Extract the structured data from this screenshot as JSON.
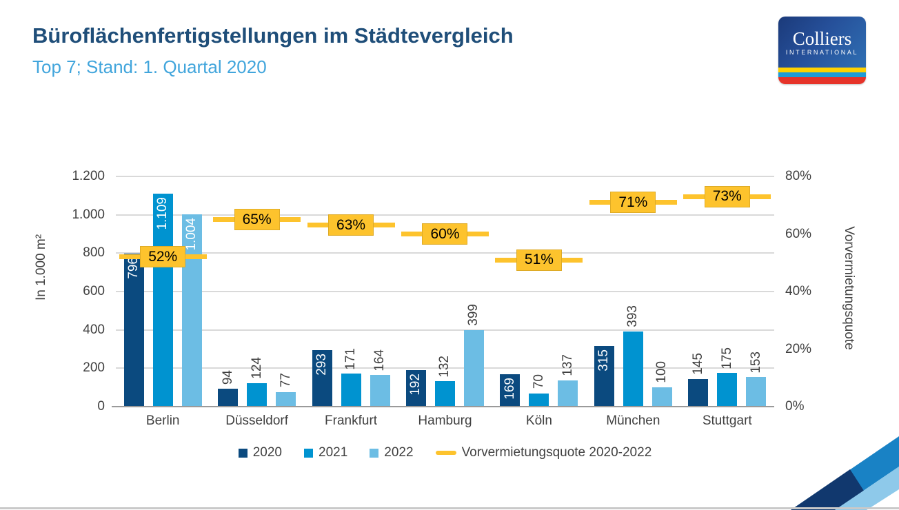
{
  "header": {
    "title": "Büroflächenfertigstellungen im Städtevergleich",
    "subtitle": "Top 7; Stand: 1. Quartal 2020"
  },
  "logo": {
    "brand": "Colliers",
    "sub": "INTERNATIONAL"
  },
  "colors": {
    "title_text": "#1f4e79",
    "subtitle_text": "#41a5dc",
    "series_2020": "#0b4a7f",
    "series_2021": "#0093d0",
    "series_2022": "#6cbde4",
    "marker_yellow": "#fdc32d",
    "axis_text": "#404040",
    "gridline": "#d9d9d9",
    "axis_line": "#9a9a9a"
  },
  "chart_data": {
    "type": "bar",
    "title": "Büroflächenfertigstellungen im Städtevergleich",
    "subtitle": "Top 7; Stand: 1. Quartal 2020",
    "categories": [
      "Berlin",
      "Düsseldorf",
      "Frankfurt",
      "Hamburg",
      "Köln",
      "München",
      "Stuttgart"
    ],
    "series": [
      {
        "name": "2020",
        "values": [
          796,
          94,
          293,
          192,
          169,
          315,
          145
        ],
        "labels": [
          "796",
          "94",
          "293",
          "192",
          "169",
          "315",
          "145"
        ],
        "label_inside": [
          true,
          false,
          true,
          true,
          true,
          true,
          false
        ]
      },
      {
        "name": "2021",
        "values": [
          1109,
          124,
          171,
          132,
          70,
          393,
          175
        ],
        "labels": [
          "1.109",
          "124",
          "171",
          "132",
          "70",
          "393",
          "175"
        ],
        "label_inside": [
          true,
          false,
          false,
          false,
          false,
          false,
          false
        ]
      },
      {
        "name": "2022",
        "values": [
          1004,
          77,
          164,
          399,
          137,
          100,
          153
        ],
        "labels": [
          "1.004",
          "77",
          "164",
          "399",
          "137",
          "100",
          "153"
        ],
        "label_inside": [
          true,
          false,
          false,
          false,
          false,
          false,
          false
        ]
      }
    ],
    "markers": {
      "name": "Vorvermietungsquote 2020-2022",
      "values": [
        52,
        65,
        63,
        60,
        51,
        71,
        73
      ],
      "labels": [
        "52%",
        "65%",
        "63%",
        "60%",
        "51%",
        "71%",
        "73%"
      ]
    },
    "y_left": {
      "label": "In 1.000 m²",
      "max": 1200,
      "tick_values": [
        0,
        200,
        400,
        600,
        800,
        1000,
        1200
      ],
      "tick_labels": [
        "0",
        "200",
        "400",
        "600",
        "800",
        "1.000",
        "1.200"
      ]
    },
    "y_right": {
      "label": "Vorvermietungsquote",
      "max": 80,
      "tick_values": [
        0,
        20,
        40,
        60,
        80
      ],
      "tick_labels": [
        "0%",
        "20%",
        "40%",
        "60%",
        "80%"
      ]
    },
    "legend": {
      "position": "bottom",
      "items": [
        "2020",
        "2021",
        "2022",
        "Vorvermietungsquote 2020-2022"
      ]
    },
    "grid": true
  }
}
